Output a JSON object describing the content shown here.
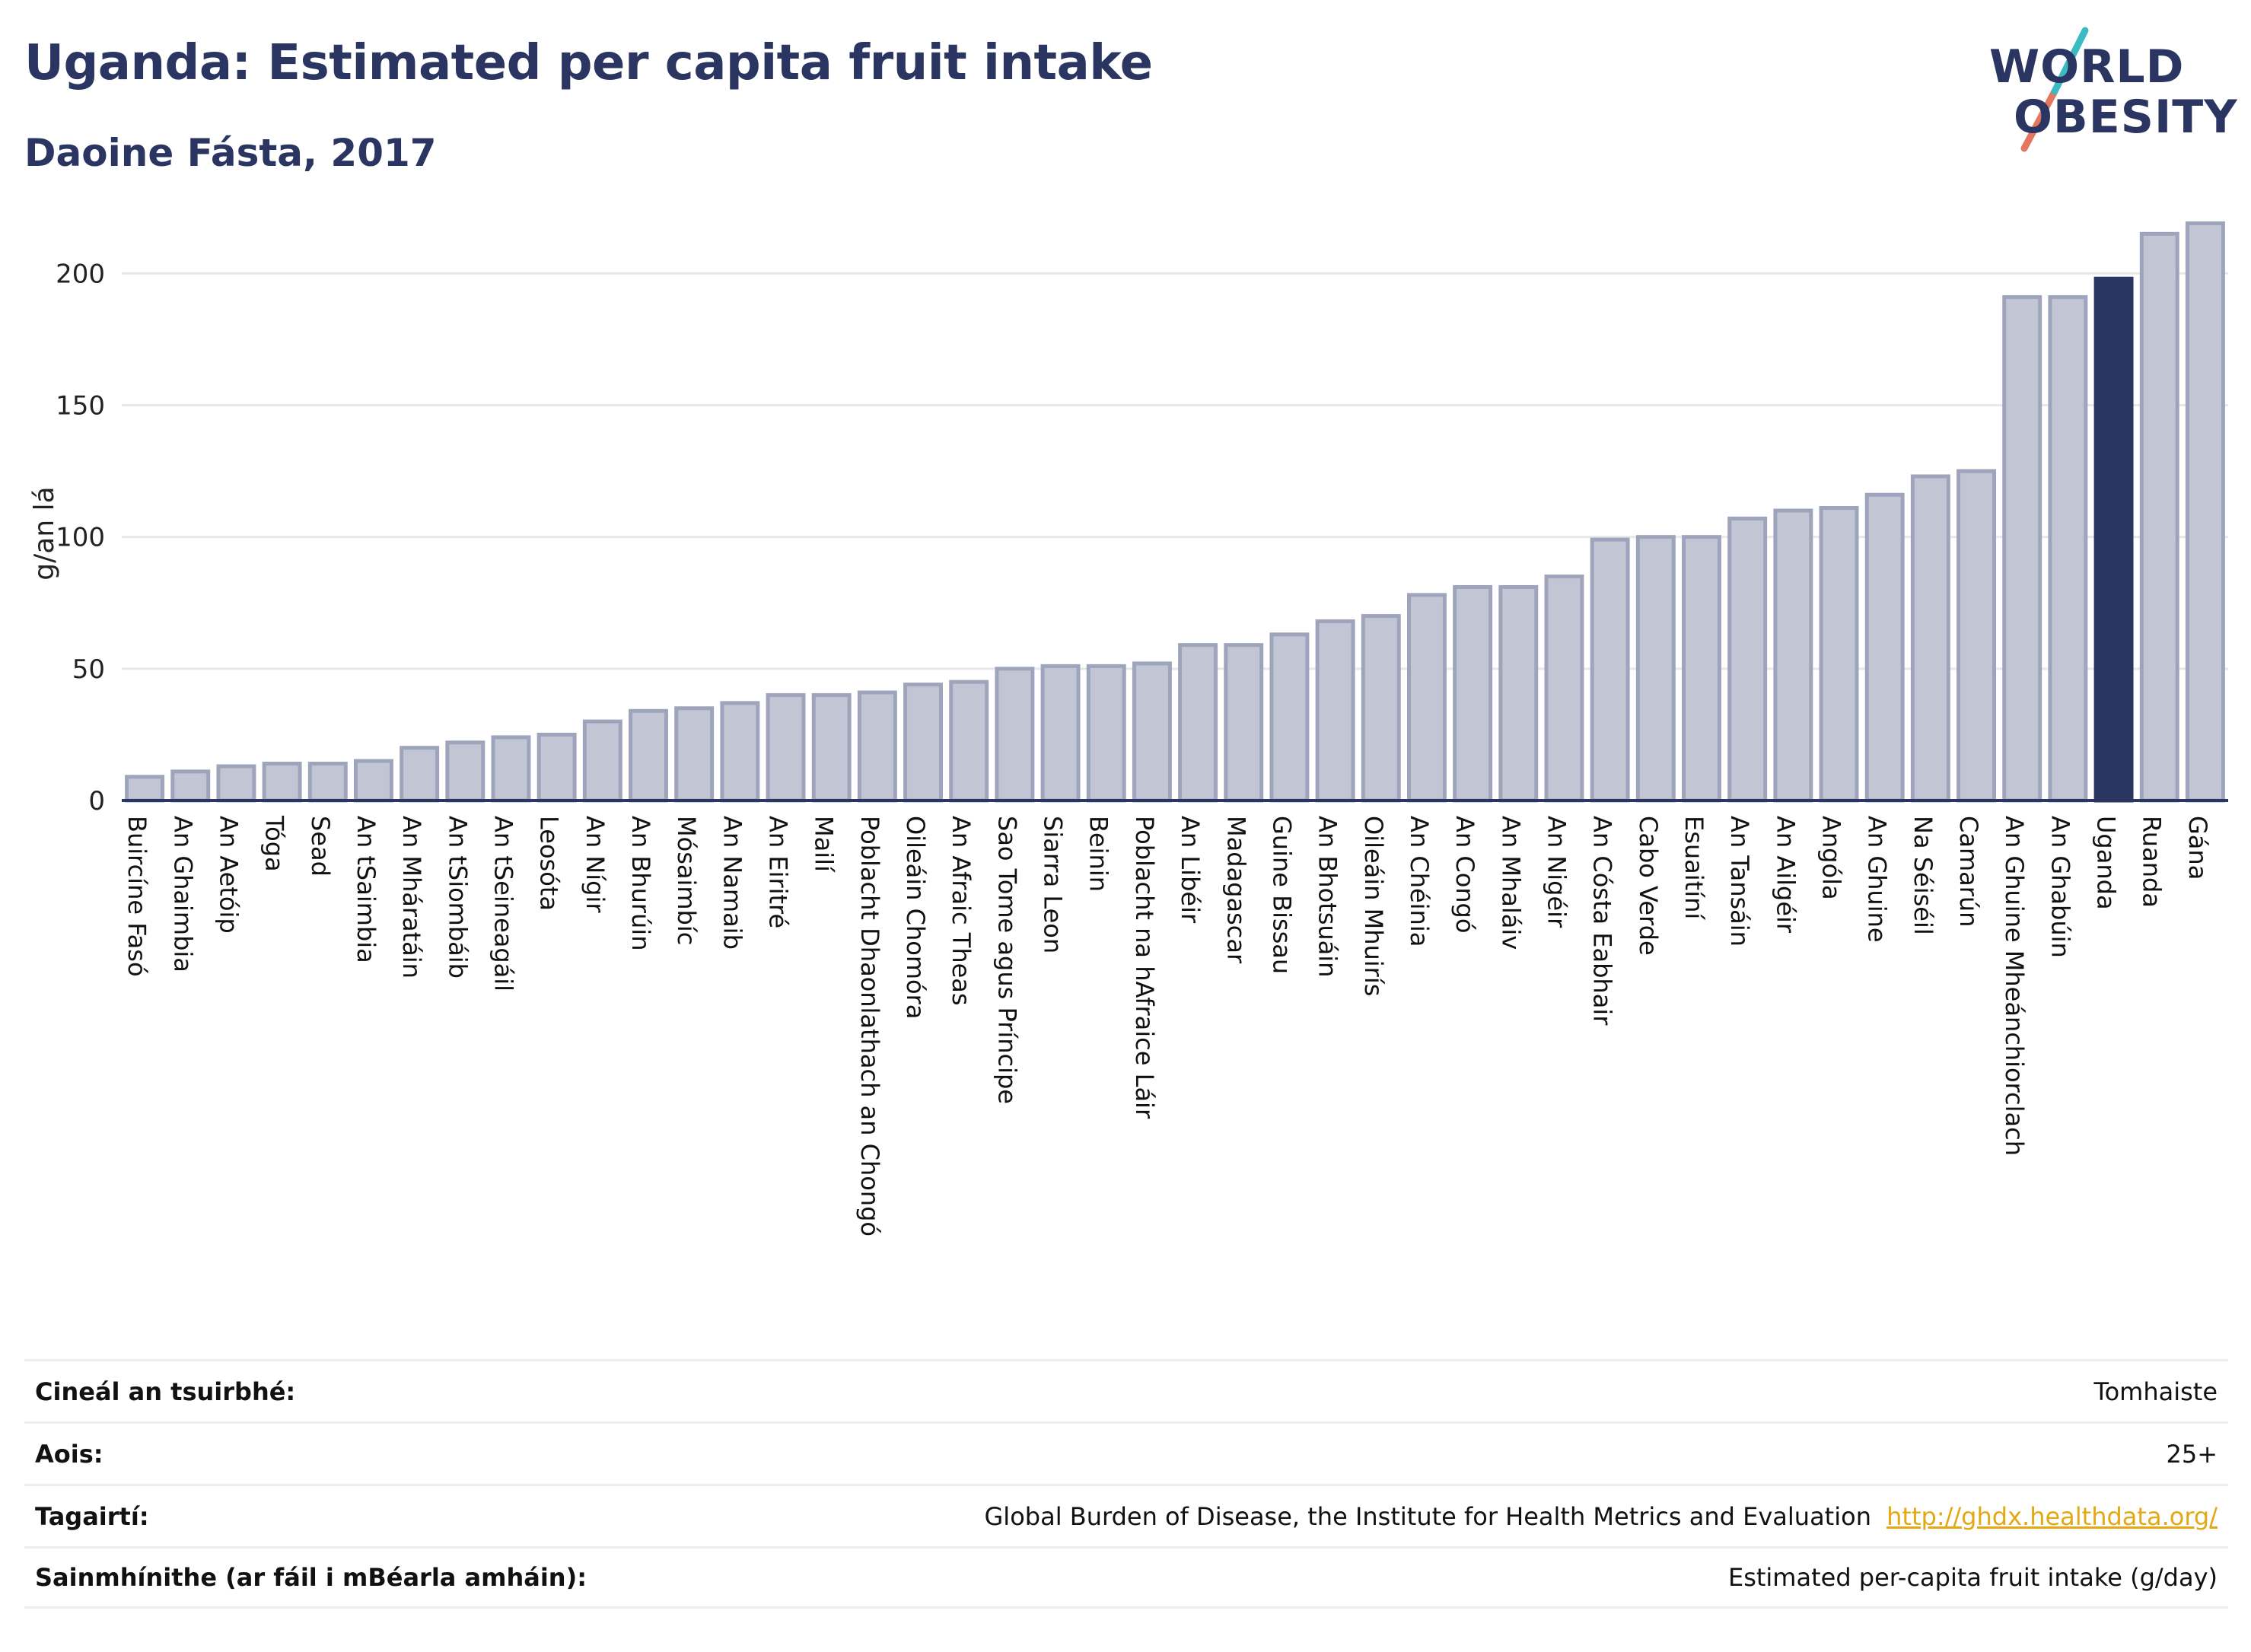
{
  "header": {
    "title": "Uganda: Estimated per capita fruit intake",
    "subtitle": "Daoine Fásta, 2017"
  },
  "logo": {
    "line1": "WORLD",
    "line2": "OBESITY",
    "colors": {
      "text": "#2b3562",
      "slash_teal": "#3cb9c1",
      "slash_coral": "#e2765e"
    }
  },
  "colors": {
    "bar_fill": "#c2c6d4",
    "bar_stroke": "#9ea4bb",
    "highlight": "#2b3562",
    "grid": "#e8e8e8",
    "axis": "#2b3562"
  },
  "chart_data": {
    "type": "bar",
    "title": "",
    "xlabel": "",
    "ylabel": "g/an lá",
    "ylim": [
      0,
      220
    ],
    "yticks": [
      0,
      50,
      100,
      150,
      200
    ],
    "highlight": "Uganda",
    "categories": [
      "Buircíne Fasó",
      "An Ghaimbia",
      "An Aetóip",
      "Tóga",
      "Sead",
      "An tSaimbia",
      "An Mháratáin",
      "An tSiombáib",
      "An tSeineagáil",
      "Leosóta",
      "An Nígir",
      "An Bhurúin",
      "Mósaimbíc",
      "An Namaib",
      "An Eiritré",
      "Mailí",
      "Poblacht Dhaonlathach an Chongó",
      "Oileáin Chomóra",
      "An Afraic Theas",
      "Sao Tome agus Príncipe",
      "Siarra Leon",
      "Beinin",
      "Poblacht na hAfraice Láir",
      "An Libéir",
      "Madagascar",
      "Guine Bissau",
      "An Bhotsuáin",
      "Oileáin Mhuirís",
      "An Chéinia",
      "An Congó",
      "An Mhaláiv",
      "An Nigéir",
      "An Cósta Eabhair",
      "Cabo Verde",
      "Esuaitíní",
      "An Tansáin",
      "An Ailgéir",
      "Angóla",
      "An Ghuine",
      "Na Séiséil",
      "Camarún",
      "An Ghuine Mheánchiorclach",
      "An Ghabúin",
      "Uganda",
      "Ruanda",
      "Gána"
    ],
    "values": [
      9,
      11,
      13,
      14,
      14,
      15,
      20,
      22,
      24,
      25,
      30,
      34,
      35,
      37,
      40,
      40,
      41,
      44,
      45,
      50,
      51,
      51,
      52,
      59,
      59,
      63,
      68,
      70,
      78,
      81,
      81,
      85,
      99,
      100,
      100,
      107,
      110,
      111,
      116,
      123,
      125,
      191,
      191,
      198,
      215,
      219
    ]
  },
  "meta": [
    {
      "label": "Cineál an tsuirbhé:",
      "value": "Tomhaiste",
      "link": ""
    },
    {
      "label": "Aois:",
      "value": "25+",
      "link": ""
    },
    {
      "label": "Tagairtí:",
      "value": "Global Burden of Disease, the Institute for Health Metrics and Evaluation",
      "link": "http://ghdx.healthdata.org/"
    },
    {
      "label": "Sainmhínithe (ar fáil i mBéarla amháin):",
      "value": "Estimated per-capita fruit intake (g/day)",
      "link": ""
    }
  ]
}
